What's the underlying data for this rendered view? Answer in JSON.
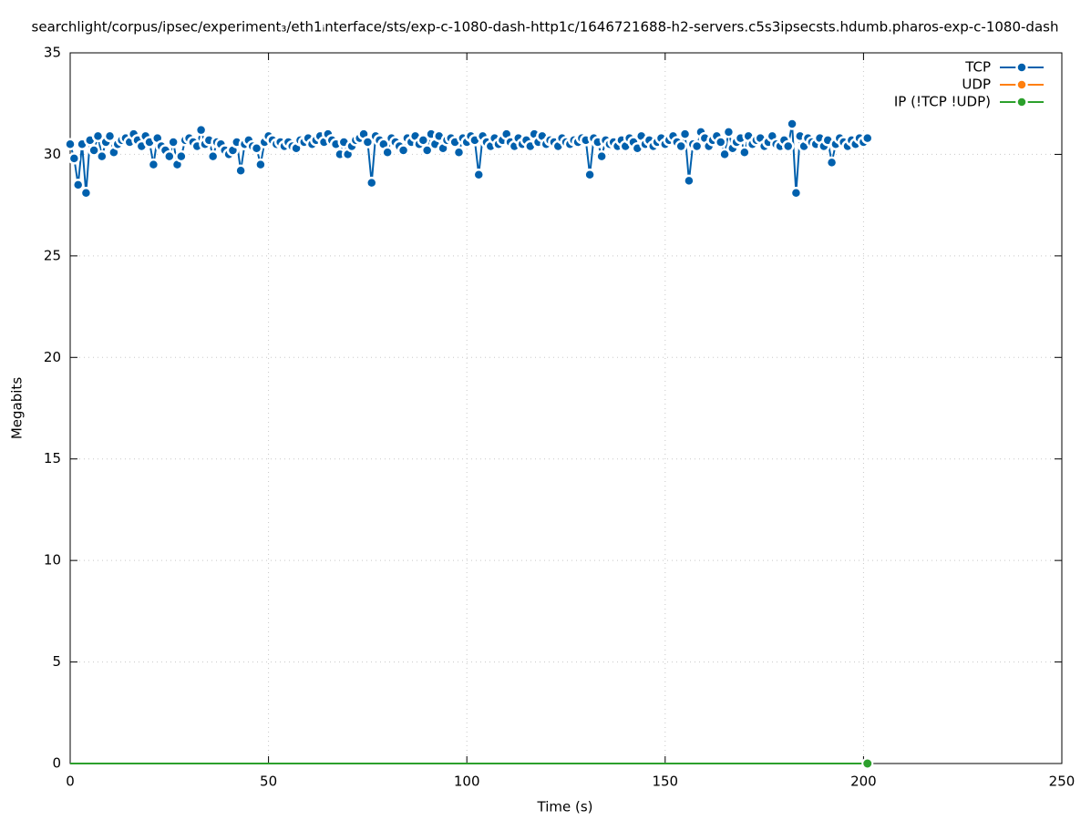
{
  "chart_data": {
    "type": "line",
    "title": "searchlight/corpus/ipsec/experiment₃/eth1ᵢnterface/sts/exp-c-1080-dash-http1c/1646721688-h2-servers.c5s3ipsecsts.hdumb.pharos-exp-c-1080-dash",
    "x_label": "Time (s)",
    "y_label": "Megabits",
    "xlim": [
      0,
      250
    ],
    "ylim": [
      0,
      35
    ],
    "xticks": [
      0,
      50,
      100,
      150,
      200,
      250
    ],
    "yticks": [
      0,
      5,
      10,
      15,
      20,
      25,
      30,
      35
    ],
    "grid": true,
    "legend": "top-right",
    "x": [
      0,
      1,
      2,
      3,
      4,
      5,
      6,
      7,
      8,
      9,
      10,
      11,
      12,
      13,
      14,
      15,
      16,
      17,
      18,
      19,
      20,
      21,
      22,
      23,
      24,
      25,
      26,
      27,
      28,
      29,
      30,
      31,
      32,
      33,
      34,
      35,
      36,
      37,
      38,
      39,
      40,
      41,
      42,
      43,
      44,
      45,
      46,
      47,
      48,
      49,
      50,
      51,
      52,
      53,
      54,
      55,
      56,
      57,
      58,
      59,
      60,
      61,
      62,
      63,
      64,
      65,
      66,
      67,
      68,
      69,
      70,
      71,
      72,
      73,
      74,
      75,
      76,
      77,
      78,
      79,
      80,
      81,
      82,
      83,
      84,
      85,
      86,
      87,
      88,
      89,
      90,
      91,
      92,
      93,
      94,
      95,
      96,
      97,
      98,
      99,
      100,
      101,
      102,
      103,
      104,
      105,
      106,
      107,
      108,
      109,
      110,
      111,
      112,
      113,
      114,
      115,
      116,
      117,
      118,
      119,
      120,
      121,
      122,
      123,
      124,
      125,
      126,
      127,
      128,
      129,
      130,
      131,
      132,
      133,
      134,
      135,
      136,
      137,
      138,
      139,
      140,
      141,
      142,
      143,
      144,
      145,
      146,
      147,
      148,
      149,
      150,
      151,
      152,
      153,
      154,
      155,
      156,
      157,
      158,
      159,
      160,
      161,
      162,
      163,
      164,
      165,
      166,
      167,
      168,
      169,
      170,
      171,
      172,
      173,
      174,
      175,
      176,
      177,
      178,
      179,
      180,
      181,
      182,
      183,
      184,
      185,
      186,
      187,
      188,
      189,
      190,
      191,
      192,
      193,
      194,
      195,
      196,
      197,
      198,
      199,
      200,
      201
    ],
    "series": [
      {
        "name": "TCP",
        "color": "#0060ad",
        "values": [
          30.5,
          29.8,
          28.5,
          30.5,
          28.1,
          30.7,
          30.2,
          30.9,
          29.9,
          30.6,
          30.9,
          30.1,
          30.5,
          30.7,
          30.8,
          30.6,
          31.0,
          30.7,
          30.4,
          30.9,
          30.6,
          29.5,
          30.8,
          30.4,
          30.2,
          29.9,
          30.6,
          29.5,
          29.9,
          30.7,
          30.8,
          30.6,
          30.4,
          31.2,
          30.5,
          30.7,
          29.9,
          30.6,
          30.5,
          30.2,
          30.0,
          30.2,
          30.6,
          29.2,
          30.5,
          30.7,
          30.4,
          30.3,
          29.5,
          30.6,
          30.9,
          30.7,
          30.5,
          30.6,
          30.4,
          30.6,
          30.4,
          30.3,
          30.7,
          30.6,
          30.8,
          30.5,
          30.7,
          30.9,
          30.6,
          31.0,
          30.7,
          30.5,
          30.0,
          30.6,
          30.0,
          30.4,
          30.7,
          30.8,
          31.0,
          30.6,
          28.6,
          30.9,
          30.7,
          30.5,
          30.1,
          30.8,
          30.6,
          30.4,
          30.2,
          30.8,
          30.6,
          30.9,
          30.5,
          30.7,
          30.2,
          31.0,
          30.5,
          30.9,
          30.3,
          30.7,
          30.8,
          30.6,
          30.1,
          30.8,
          30.6,
          30.9,
          30.7,
          29.0,
          30.9,
          30.6,
          30.4,
          30.8,
          30.5,
          30.7,
          31.0,
          30.6,
          30.4,
          30.8,
          30.5,
          30.7,
          30.4,
          31.0,
          30.6,
          30.9,
          30.5,
          30.7,
          30.6,
          30.4,
          30.8,
          30.6,
          30.5,
          30.7,
          30.6,
          30.8,
          30.7,
          29.0,
          30.8,
          30.6,
          29.9,
          30.7,
          30.5,
          30.6,
          30.4,
          30.7,
          30.4,
          30.8,
          30.6,
          30.3,
          30.9,
          30.5,
          30.7,
          30.4,
          30.6,
          30.8,
          30.5,
          30.7,
          30.9,
          30.6,
          30.4,
          31.0,
          28.7,
          30.5,
          30.4,
          31.1,
          30.8,
          30.4,
          30.7,
          30.9,
          30.6,
          30.0,
          31.1,
          30.3,
          30.6,
          30.8,
          30.1,
          30.9,
          30.5,
          30.7,
          30.8,
          30.4,
          30.6,
          30.9,
          30.5,
          30.4,
          30.7,
          30.4,
          31.5,
          28.1,
          30.9,
          30.4,
          30.8,
          30.6,
          30.5,
          30.8,
          30.4,
          30.7,
          29.6,
          30.5,
          30.8,
          30.6,
          30.4,
          30.7,
          30.5,
          30.8,
          30.6,
          30.8
        ]
      },
      {
        "name": "UDP",
        "color": "#ff7f0e",
        "values": [
          0,
          0,
          0,
          0,
          0,
          0,
          0,
          0,
          0,
          0,
          0,
          0,
          0,
          0,
          0,
          0,
          0,
          0,
          0,
          0,
          0,
          0,
          0,
          0,
          0,
          0,
          0,
          0,
          0,
          0,
          0,
          0,
          0,
          0,
          0,
          0,
          0,
          0,
          0,
          0,
          0,
          0,
          0,
          0,
          0,
          0,
          0,
          0,
          0,
          0,
          0,
          0,
          0,
          0,
          0,
          0,
          0,
          0,
          0,
          0,
          0,
          0,
          0,
          0,
          0,
          0,
          0,
          0,
          0,
          0,
          0,
          0,
          0,
          0,
          0,
          0,
          0,
          0,
          0,
          0,
          0,
          0,
          0,
          0,
          0,
          0,
          0,
          0,
          0,
          0,
          0,
          0,
          0,
          0,
          0,
          0,
          0,
          0,
          0,
          0,
          0,
          0,
          0,
          0,
          0,
          0,
          0,
          0,
          0,
          0,
          0,
          0,
          0,
          0,
          0,
          0,
          0,
          0,
          0,
          0,
          0,
          0,
          0,
          0,
          0,
          0,
          0,
          0,
          0,
          0,
          0,
          0,
          0,
          0,
          0,
          0,
          0,
          0,
          0,
          0,
          0,
          0,
          0,
          0,
          0,
          0,
          0,
          0,
          0,
          0,
          0,
          0,
          0,
          0,
          0,
          0,
          0,
          0,
          0,
          0,
          0,
          0,
          0,
          0,
          0,
          0,
          0,
          0,
          0,
          0,
          0,
          0,
          0,
          0,
          0,
          0,
          0,
          0,
          0,
          0,
          0,
          0,
          0,
          0,
          0,
          0,
          0,
          0,
          0,
          0,
          0,
          0,
          0,
          0,
          0,
          0,
          0,
          0,
          0,
          0,
          0,
          0
        ]
      },
      {
        "name": "IP (!TCP  !UDP)",
        "color": "#2ca02c",
        "values": [
          0,
          0,
          0,
          0,
          0,
          0,
          0,
          0,
          0,
          0,
          0,
          0,
          0,
          0,
          0,
          0,
          0,
          0,
          0,
          0,
          0,
          0,
          0,
          0,
          0,
          0,
          0,
          0,
          0,
          0,
          0,
          0,
          0,
          0,
          0,
          0,
          0,
          0,
          0,
          0,
          0,
          0,
          0,
          0,
          0,
          0,
          0,
          0,
          0,
          0,
          0,
          0,
          0,
          0,
          0,
          0,
          0,
          0,
          0,
          0,
          0,
          0,
          0,
          0,
          0,
          0,
          0,
          0,
          0,
          0,
          0,
          0,
          0,
          0,
          0,
          0,
          0,
          0,
          0,
          0,
          0,
          0,
          0,
          0,
          0,
          0,
          0,
          0,
          0,
          0,
          0,
          0,
          0,
          0,
          0,
          0,
          0,
          0,
          0,
          0,
          0,
          0,
          0,
          0,
          0,
          0,
          0,
          0,
          0,
          0,
          0,
          0,
          0,
          0,
          0,
          0,
          0,
          0,
          0,
          0,
          0,
          0,
          0,
          0,
          0,
          0,
          0,
          0,
          0,
          0,
          0,
          0,
          0,
          0,
          0,
          0,
          0,
          0,
          0,
          0,
          0,
          0,
          0,
          0,
          0,
          0,
          0,
          0,
          0,
          0,
          0,
          0,
          0,
          0,
          0,
          0,
          0,
          0,
          0,
          0,
          0,
          0,
          0,
          0,
          0,
          0,
          0,
          0,
          0,
          0,
          0,
          0,
          0,
          0,
          0,
          0,
          0,
          0,
          0,
          0,
          0,
          0,
          0,
          0,
          0,
          0,
          0,
          0,
          0,
          0,
          0,
          0,
          0,
          0,
          0,
          0,
          0,
          0,
          0,
          0,
          0,
          0
        ]
      }
    ]
  }
}
